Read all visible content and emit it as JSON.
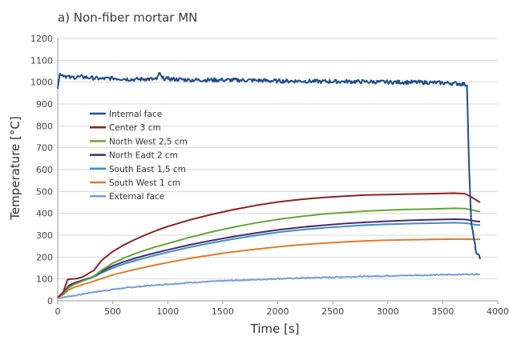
{
  "chart_data": {
    "type": "line",
    "title": "a) Non-fiber mortar MN",
    "xlabel": "Time [s]",
    "ylabel": "Temperature [°C]",
    "xlim": [
      0,
      4000
    ],
    "ylim": [
      0,
      1200
    ],
    "xticks": [
      0,
      500,
      1000,
      1500,
      2000,
      2500,
      3000,
      3500,
      4000
    ],
    "yticks": [
      0,
      100,
      200,
      300,
      400,
      500,
      600,
      700,
      800,
      900,
      1000,
      1100,
      1200
    ],
    "grid": "horizontal",
    "legend_position": "upper-left",
    "series": [
      {
        "name": "Internal face",
        "color": "#1f4e8c",
        "noise": 9,
        "x": [
          0,
          20,
          60,
          120,
          200,
          300,
          400,
          500,
          600,
          700,
          800,
          900,
          920,
          950,
          1000,
          1200,
          1500,
          1800,
          2000,
          2200,
          2400,
          2600,
          2800,
          3000,
          3200,
          3400,
          3600,
          3700,
          3720,
          3740,
          3760,
          3800,
          3840
        ],
        "y": [
          970,
          1040,
          1030,
          1020,
          1025,
          1020,
          1015,
          1018,
          1015,
          1012,
          1015,
          1012,
          1042,
          1018,
          1015,
          1010,
          1010,
          1008,
          1005,
          1005,
          1003,
          1003,
          1002,
          1000,
          1000,
          998,
          995,
          990,
          985,
          600,
          350,
          230,
          190
        ]
      },
      {
        "name": "Center 3 cm",
        "color": "#8b2323",
        "x": [
          0,
          50,
          90,
          130,
          180,
          230,
          280,
          330,
          400,
          500,
          600,
          700,
          800,
          900,
          1000,
          1200,
          1400,
          1600,
          1800,
          2000,
          2200,
          2400,
          2600,
          2800,
          3000,
          3200,
          3400,
          3600,
          3700,
          3750,
          3800,
          3840
        ],
        "y": [
          15,
          40,
          98,
          100,
          102,
          110,
          125,
          140,
          185,
          225,
          255,
          280,
          302,
          322,
          340,
          370,
          395,
          417,
          436,
          452,
          463,
          472,
          478,
          484,
          486,
          488,
          490,
          492,
          490,
          478,
          462,
          450
        ]
      },
      {
        "name": "North West 2,5 cm",
        "color": "#6aa33a",
        "x": [
          0,
          50,
          100,
          150,
          200,
          250,
          300,
          350,
          400,
          500,
          600,
          700,
          800,
          900,
          1000,
          1200,
          1400,
          1600,
          1800,
          2000,
          2200,
          2400,
          2600,
          2800,
          3000,
          3200,
          3400,
          3600,
          3700,
          3750,
          3800,
          3840
        ],
        "y": [
          15,
          30,
          60,
          75,
          85,
          95,
          105,
          120,
          140,
          172,
          195,
          215,
          232,
          248,
          262,
          290,
          315,
          337,
          356,
          372,
          385,
          396,
          404,
          410,
          415,
          418,
          420,
          423,
          422,
          417,
          412,
          408
        ]
      },
      {
        "name": "North Eadt 2 cm",
        "color": "#4a2a6e",
        "x": [
          0,
          50,
          100,
          150,
          200,
          250,
          300,
          350,
          400,
          500,
          600,
          700,
          800,
          900,
          1000,
          1200,
          1400,
          1600,
          1800,
          2000,
          2200,
          2400,
          2600,
          2800,
          3000,
          3200,
          3400,
          3600,
          3700,
          3750,
          3800,
          3840
        ],
        "y": [
          15,
          35,
          70,
          82,
          90,
          98,
          106,
          118,
          135,
          160,
          178,
          194,
          208,
          221,
          233,
          256,
          276,
          294,
          310,
          324,
          336,
          345,
          353,
          359,
          364,
          368,
          371,
          373,
          372,
          368,
          364,
          362
        ]
      },
      {
        "name": "South East 1,5 cm",
        "color": "#3a8fc4",
        "x": [
          0,
          50,
          100,
          150,
          200,
          250,
          300,
          350,
          400,
          500,
          600,
          700,
          800,
          900,
          1000,
          1200,
          1400,
          1600,
          1800,
          2000,
          2200,
          2400,
          2600,
          2800,
          3000,
          3200,
          3400,
          3600,
          3700,
          3750,
          3800,
          3840
        ],
        "y": [
          15,
          32,
          62,
          76,
          86,
          95,
          103,
          114,
          128,
          150,
          168,
          183,
          197,
          210,
          222,
          245,
          265,
          283,
          299,
          313,
          324,
          333,
          340,
          346,
          350,
          353,
          355,
          357,
          356,
          352,
          348,
          346
        ]
      },
      {
        "name": "South West 1 cm",
        "color": "#e07b2a",
        "x": [
          0,
          50,
          100,
          150,
          200,
          250,
          300,
          350,
          400,
          500,
          600,
          700,
          800,
          900,
          1000,
          1200,
          1400,
          1600,
          1800,
          2000,
          2200,
          2400,
          2600,
          2800,
          3000,
          3200,
          3400,
          3600,
          3700,
          3800,
          3840
        ],
        "y": [
          15,
          28,
          50,
          62,
          70,
          78,
          85,
          93,
          102,
          118,
          131,
          143,
          154,
          165,
          175,
          194,
          210,
          224,
          236,
          247,
          256,
          263,
          269,
          274,
          277,
          279,
          281,
          282,
          282,
          281,
          281
        ]
      },
      {
        "name": "External face",
        "color": "#7a9fd4",
        "noise": 2.5,
        "x": [
          0,
          100,
          200,
          300,
          400,
          500,
          600,
          700,
          800,
          1000,
          1200,
          1500,
          1800,
          2000,
          2500,
          3000,
          3500,
          3700,
          3840
        ],
        "y": [
          12,
          20,
          28,
          38,
          45,
          52,
          58,
          63,
          68,
          76,
          83,
          91,
          97,
          101,
          108,
          114,
          119,
          121,
          122
        ]
      }
    ]
  }
}
